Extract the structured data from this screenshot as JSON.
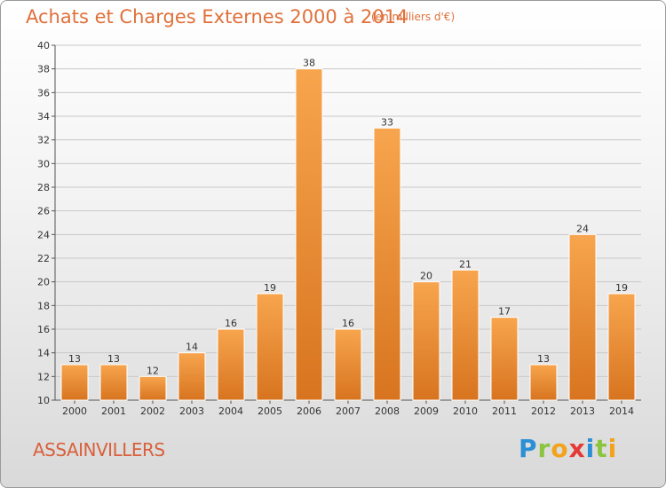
{
  "header": {
    "title": "Achats et Charges Externes 2000 à 2014",
    "subtitle": "(en milliers d'€)"
  },
  "footer": {
    "commune": "ASSAINVILLERS",
    "logo_text": "Proxiti"
  },
  "colors": {
    "bar_light": "#f7a54e",
    "bar_dark": "#d8741f",
    "title": "#e0703a"
  },
  "chart_data": {
    "type": "bar",
    "title": "Achats et Charges Externes 2000 à 2014",
    "subtitle": "(en milliers d'€)",
    "categories": [
      "2000",
      "2001",
      "2002",
      "2003",
      "2004",
      "2005",
      "2006",
      "2007",
      "2008",
      "2009",
      "2010",
      "2011",
      "2012",
      "2013",
      "2014"
    ],
    "values": [
      13,
      13,
      12,
      14,
      16,
      19,
      38,
      16,
      33,
      20,
      21,
      17,
      13,
      24,
      19
    ],
    "ylim": [
      10,
      40
    ],
    "yticks": [
      10,
      12,
      14,
      16,
      18,
      20,
      22,
      24,
      26,
      28,
      30,
      32,
      34,
      36,
      38,
      40
    ],
    "grid": true,
    "xlabel": "",
    "ylabel": ""
  }
}
